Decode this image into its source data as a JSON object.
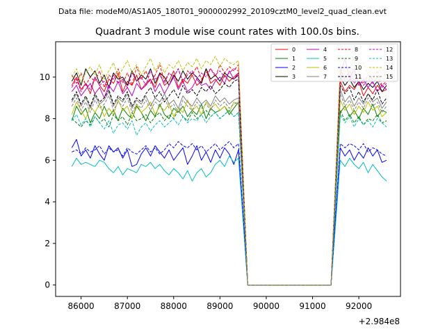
{
  "chart_data": {
    "type": "line",
    "suptitle": "Data file: modeM0/AS1A05_180T01_9000002992_20109cztM0_level2_quad_clean.evt",
    "title": "Quadrant 3 module wise count rates with 100.0s bins.",
    "xlabel": "",
    "ylabel": "",
    "x_offset_label": "+2.984e8",
    "xlim": [
      85450,
      92900
    ],
    "ylim": [
      -0.55,
      11.7
    ],
    "x_ticks": [
      86000,
      87000,
      88000,
      89000,
      90000,
      91000,
      92000
    ],
    "x_tick_labels": [
      "86000",
      "87000",
      "88000",
      "89000",
      "90000",
      "91000",
      "92000"
    ],
    "y_ticks": [
      0,
      2,
      4,
      6,
      8,
      10
    ],
    "y_tick_labels": [
      "0",
      "2",
      "4",
      "6",
      "8",
      "10"
    ],
    "grid": false,
    "legend_position": "top-right",
    "x": [
      85800,
      85900,
      86000,
      86100,
      86200,
      86300,
      86400,
      86500,
      86600,
      86700,
      86800,
      86900,
      87000,
      87100,
      87200,
      87300,
      87400,
      87500,
      87600,
      87700,
      87800,
      87900,
      88000,
      88100,
      88200,
      88300,
      88400,
      88500,
      88600,
      88700,
      88800,
      88900,
      89000,
      89100,
      89200,
      89300,
      89400,
      89600,
      89800,
      90000,
      90200,
      90400,
      90600,
      90800,
      91000,
      91200,
      91400,
      91600,
      91700,
      91800,
      91900,
      92000,
      92100,
      92200,
      92300,
      92400,
      92500,
      92600
    ],
    "series": [
      {
        "name": "0",
        "color": "#ff0000",
        "dash": "solid",
        "values": [
          9.6,
          10.0,
          9.4,
          9.7,
          9.2,
          10.0,
          9.6,
          9.3,
          9.9,
          9.7,
          10.2,
          9.3,
          9.8,
          9.6,
          10.1,
          9.4,
          9.7,
          9.9,
          9.5,
          10.2,
          9.6,
          9.8,
          10.3,
          9.5,
          9.9,
          9.7,
          10.1,
          9.6,
          9.8,
          10.4,
          9.7,
          9.9,
          9.6,
          10.1,
          9.8,
          10.0,
          10.2,
          0,
          0,
          0,
          0,
          0,
          0,
          0,
          0,
          0,
          0,
          9.8,
          9.3,
          9.6,
          9.4,
          9.8,
          9.1,
          9.5,
          9.2,
          9.6,
          9.3,
          9.4
        ]
      },
      {
        "name": "1",
        "color": "#008000",
        "dash": "solid",
        "values": [
          7.9,
          8.6,
          8.2,
          8.5,
          7.8,
          8.3,
          8.0,
          8.6,
          8.1,
          8.4,
          7.9,
          8.5,
          8.2,
          8.0,
          8.6,
          8.3,
          7.9,
          8.4,
          8.1,
          8.7,
          8.2,
          8.0,
          8.5,
          8.3,
          8.6,
          8.1,
          8.4,
          8.2,
          8.7,
          8.0,
          8.5,
          8.3,
          8.4,
          8.6,
          8.2,
          8.5,
          8.8,
          0,
          0,
          0,
          0,
          0,
          0,
          0,
          0,
          0,
          0,
          8.3,
          8.6,
          8.1,
          8.4,
          8.0,
          8.5,
          8.2,
          8.7,
          8.1,
          8.4,
          8.3
        ]
      },
      {
        "name": "2",
        "color": "#0000ff",
        "dash": "solid",
        "values": [
          6.6,
          7.0,
          6.2,
          6.5,
          6.1,
          6.7,
          6.3,
          6.0,
          6.7,
          6.4,
          6.6,
          6.1,
          6.5,
          5.7,
          5.8,
          6.3,
          6.6,
          6.2,
          6.7,
          6.4,
          6.1,
          6.5,
          6.0,
          6.3,
          6.6,
          5.8,
          6.2,
          6.7,
          6.0,
          6.4,
          5.9,
          6.5,
          6.1,
          6.6,
          6.3,
          5.8,
          6.5,
          0,
          0,
          0,
          0,
          0,
          0,
          0,
          0,
          0,
          0,
          6.6,
          6.2,
          6.5,
          6.0,
          6.4,
          6.1,
          6.6,
          6.2,
          6.5,
          5.9,
          6.0
        ]
      },
      {
        "name": "3",
        "color": "#000000",
        "dash": "solid",
        "values": [
          9.8,
          10.2,
          9.6,
          10.4,
          10.0,
          10.3,
          9.7,
          10.1,
          9.5,
          10.2,
          9.9,
          10.0,
          9.6,
          10.3,
          9.8,
          10.1,
          9.9,
          10.4,
          9.7,
          10.2,
          10.0,
          9.6,
          10.1,
          9.8,
          10.3,
          9.9,
          10.2,
          10.0,
          9.7,
          10.4,
          9.9,
          10.1,
          9.8,
          10.2,
          10.0,
          9.9,
          10.1,
          0,
          0,
          0,
          0,
          0,
          0,
          0,
          0,
          0,
          0,
          10.0,
          9.6,
          9.9,
          9.5,
          9.8,
          9.4,
          9.7,
          9.5,
          9.8,
          9.3,
          9.6
        ]
      },
      {
        "name": "4",
        "color": "#bf00bf",
        "dash": "solid",
        "values": [
          9.3,
          9.6,
          9.1,
          9.4,
          9.7,
          9.2,
          9.5,
          9.0,
          9.6,
          9.3,
          9.8,
          9.2,
          9.5,
          9.1,
          9.7,
          9.4,
          9.6,
          9.9,
          9.3,
          9.7,
          9.2,
          9.6,
          10.0,
          9.4,
          9.8,
          9.3,
          9.5,
          9.9,
          9.6,
          9.7,
          9.4,
          9.8,
          10.0,
          9.7,
          10.3,
          9.9,
          10.2,
          0,
          0,
          0,
          0,
          0,
          0,
          0,
          0,
          0,
          0,
          10.1,
          10.9,
          9.9,
          10.4,
          9.6,
          9.9,
          9.5,
          9.8,
          9.3,
          9.6,
          9.4
        ]
      },
      {
        "name": "5",
        "color": "#00bfbf",
        "dash": "solid",
        "values": [
          5.7,
          6.1,
          5.8,
          5.9,
          5.8,
          5.7,
          6.0,
          5.9,
          5.6,
          5.4,
          5.7,
          5.3,
          5.6,
          5.5,
          5.4,
          5.8,
          5.7,
          5.9,
          5.6,
          5.8,
          5.5,
          5.3,
          5.6,
          5.4,
          5.1,
          5.5,
          5.0,
          5.4,
          5.6,
          5.2,
          5.4,
          5.8,
          6.0,
          5.7,
          6.2,
          5.9,
          6.1,
          0,
          0,
          0,
          0,
          0,
          0,
          0,
          0,
          0,
          0,
          6.0,
          5.7,
          6.1,
          5.8,
          5.6,
          5.9,
          5.4,
          5.8,
          5.5,
          5.2,
          5.0
        ]
      },
      {
        "name": "6",
        "color": "#bfbf00",
        "dash": "solid",
        "values": [
          8.2,
          8.8,
          8.4,
          8.0,
          8.6,
          8.3,
          8.7,
          8.1,
          8.5,
          8.2,
          8.9,
          8.4,
          8.6,
          8.0,
          8.7,
          8.3,
          8.5,
          8.8,
          8.2,
          8.6,
          8.4,
          8.7,
          8.1,
          8.5,
          8.3,
          8.9,
          8.4,
          8.6,
          8.2,
          8.8,
          8.5,
          8.7,
          8.4,
          8.6,
          8.3,
          8.8,
          8.7,
          0,
          0,
          0,
          0,
          0,
          0,
          0,
          0,
          0,
          0,
          8.9,
          8.4,
          8.7,
          8.2,
          8.6,
          8.3,
          8.8,
          8.4,
          8.6,
          8.1,
          8.3
        ]
      },
      {
        "name": "7",
        "color": "#808080",
        "dash": "solid",
        "values": [
          8.8,
          9.2,
          8.6,
          9.0,
          8.5,
          9.1,
          8.7,
          8.9,
          9.3,
          8.6,
          9.0,
          8.8,
          9.2,
          8.5,
          8.9,
          8.7,
          9.1,
          8.6,
          9.0,
          8.8,
          9.2,
          8.7,
          8.9,
          8.5,
          9.1,
          8.8,
          8.6,
          9.0,
          8.7,
          8.9,
          8.6,
          9.1,
          8.8,
          9.0,
          8.7,
          8.9,
          9.0,
          0,
          0,
          0,
          0,
          0,
          0,
          0,
          0,
          0,
          0,
          9.4,
          8.8,
          9.1,
          8.6,
          9.0,
          8.7,
          9.2,
          8.8,
          9.0,
          8.5,
          8.8
        ]
      },
      {
        "name": "8",
        "color": "#ff0000",
        "dash": "dashed",
        "values": [
          10.1,
          9.7,
          10.2,
          9.6,
          10.0,
          9.8,
          10.3,
          9.5,
          10.1,
          9.9,
          10.4,
          9.7,
          10.2,
          9.6,
          10.5,
          9.9,
          10.3,
          9.7,
          10.1,
          10.6,
          9.8,
          10.2,
          10.0,
          10.4,
          9.7,
          10.3,
          10.1,
          10.5,
          9.9,
          10.2,
          10.4,
          10.0,
          10.6,
          10.2,
          10.5,
          10.3,
          10.6,
          0,
          0,
          0,
          0,
          0,
          0,
          0,
          0,
          0,
          0,
          10.4,
          9.9,
          10.3,
          9.8,
          10.2,
          9.7,
          10.1,
          9.9,
          10.3,
          9.6,
          9.8
        ]
      },
      {
        "name": "9",
        "color": "#008000",
        "dash": "dashed",
        "values": [
          8.0,
          7.8,
          7.6,
          7.9,
          7.7,
          8.1,
          7.8,
          8.0,
          7.6,
          8.2,
          7.9,
          8.1,
          7.7,
          8.3,
          7.9,
          8.0,
          8.2,
          7.8,
          8.1,
          8.3,
          7.9,
          8.2,
          8.0,
          8.4,
          8.1,
          7.9,
          8.3,
          8.0,
          8.2,
          8.4,
          8.1,
          8.3,
          8.0,
          8.2,
          8.4,
          8.1,
          8.3,
          0,
          0,
          0,
          0,
          0,
          0,
          0,
          0,
          0,
          0,
          8.4,
          7.9,
          8.2,
          7.8,
          8.1,
          7.7,
          8.0,
          7.9,
          8.2,
          7.8,
          7.9
        ]
      },
      {
        "name": "10",
        "color": "#0000ff",
        "dash": "dashed",
        "values": [
          6.4,
          6.5,
          6.3,
          6.6,
          6.4,
          6.5,
          6.7,
          6.3,
          6.6,
          6.4,
          6.5,
          6.2,
          6.6,
          6.4,
          6.3,
          6.5,
          6.7,
          6.4,
          6.6,
          6.3,
          6.5,
          6.8,
          6.6,
          6.9,
          6.7,
          6.6,
          6.8,
          6.5,
          6.7,
          6.4,
          6.6,
          6.8,
          6.5,
          6.7,
          6.9,
          6.6,
          6.8,
          0,
          0,
          0,
          0,
          0,
          0,
          0,
          0,
          0,
          0,
          6.8,
          6.6,
          6.8,
          6.7,
          6.5,
          6.8,
          6.4,
          6.6,
          6.5,
          6.3,
          6.2
        ]
      },
      {
        "name": "11",
        "color": "#000000",
        "dash": "dashed",
        "values": [
          8.9,
          9.3,
          8.7,
          9.1,
          8.6,
          9.2,
          8.8,
          9.0,
          9.4,
          8.7,
          9.1,
          8.9,
          9.3,
          8.6,
          9.0,
          8.8,
          9.2,
          9.5,
          9.0,
          9.3,
          8.8,
          9.1,
          9.4,
          9.0,
          9.6,
          9.2,
          9.4,
          9.1,
          9.5,
          9.3,
          9.6,
          9.2,
          9.4,
          9.7,
          9.5,
          9.8,
          9.9,
          0,
          0,
          0,
          0,
          0,
          0,
          0,
          0,
          0,
          0,
          9.6,
          9.2,
          9.5,
          8.9,
          9.3,
          8.8,
          9.2,
          8.9,
          9.4,
          8.7,
          9.0
        ]
      },
      {
        "name": "12",
        "color": "#bf00bf",
        "dash": "dashed",
        "values": [
          9.5,
          9.9,
          9.3,
          9.7,
          9.4,
          10.0,
          9.6,
          9.8,
          9.4,
          10.1,
          9.7,
          9.9,
          9.5,
          10.2,
          9.8,
          10.0,
          9.6,
          10.3,
          9.9,
          10.1,
          9.7,
          10.2,
          10.0,
          10.4,
          9.8,
          10.1,
          10.3,
          9.9,
          10.2,
          10.0,
          10.4,
          10.1,
          10.3,
          10.0,
          10.2,
          10.4,
          10.3,
          0,
          0,
          0,
          0,
          0,
          0,
          0,
          0,
          0,
          0,
          10.2,
          9.8,
          10.1,
          9.7,
          10.0,
          9.6,
          9.9,
          9.7,
          10.0,
          9.5,
          9.7
        ]
      },
      {
        "name": "13",
        "color": "#00bfbf",
        "dash": "dashed",
        "values": [
          7.9,
          8.2,
          7.7,
          8.0,
          7.6,
          8.1,
          7.8,
          7.5,
          7.9,
          7.3,
          7.7,
          7.8,
          7.5,
          7.9,
          7.2,
          7.6,
          7.8,
          7.4,
          7.7,
          7.9,
          7.6,
          7.8,
          8.0,
          7.7,
          8.1,
          7.8,
          8.0,
          7.9,
          8.2,
          7.8,
          8.1,
          8.3,
          8.0,
          8.2,
          8.4,
          8.1,
          8.3,
          0,
          0,
          0,
          0,
          0,
          0,
          0,
          0,
          0,
          0,
          8.2,
          7.8,
          8.1,
          7.6,
          8.0,
          7.7,
          7.9,
          7.6,
          8.0,
          7.8,
          7.6
        ]
      },
      {
        "name": "14",
        "color": "#bfbf00",
        "dash": "dashed",
        "values": [
          10.0,
          10.4,
          9.8,
          10.2,
          10.5,
          10.1,
          10.6,
          9.9,
          10.3,
          10.7,
          10.0,
          10.4,
          10.8,
          10.2,
          10.6,
          10.1,
          10.5,
          10.9,
          10.3,
          10.7,
          10.2,
          10.6,
          10.4,
          10.8,
          10.3,
          10.7,
          10.5,
          10.9,
          10.4,
          10.8,
          10.6,
          11.0,
          10.5,
          10.9,
          10.7,
          10.6,
          10.8,
          0,
          0,
          0,
          0,
          0,
          0,
          0,
          0,
          0,
          0,
          10.6,
          10.2,
          10.5,
          10.9,
          10.3,
          10.7,
          10.1,
          10.5,
          10.2,
          10.4,
          10.0
        ]
      },
      {
        "name": "15",
        "color": "#808080",
        "dash": "dashed",
        "values": [
          8.6,
          9.0,
          8.4,
          8.8,
          8.3,
          8.9,
          8.5,
          8.7,
          9.1,
          8.4,
          8.8,
          8.6,
          9.0,
          8.3,
          8.7,
          8.5,
          8.9,
          8.4,
          8.8,
          8.6,
          9.0,
          8.5,
          8.7,
          8.3,
          8.9,
          8.6,
          8.4,
          8.8,
          8.5,
          8.7,
          8.4,
          8.9,
          8.6,
          8.8,
          8.5,
          8.7,
          8.8,
          0,
          0,
          0,
          0,
          0,
          0,
          0,
          0,
          0,
          0,
          9.2,
          8.6,
          8.9,
          8.4,
          8.8,
          8.5,
          9.0,
          8.6,
          8.8,
          8.3,
          8.6
        ]
      }
    ]
  }
}
